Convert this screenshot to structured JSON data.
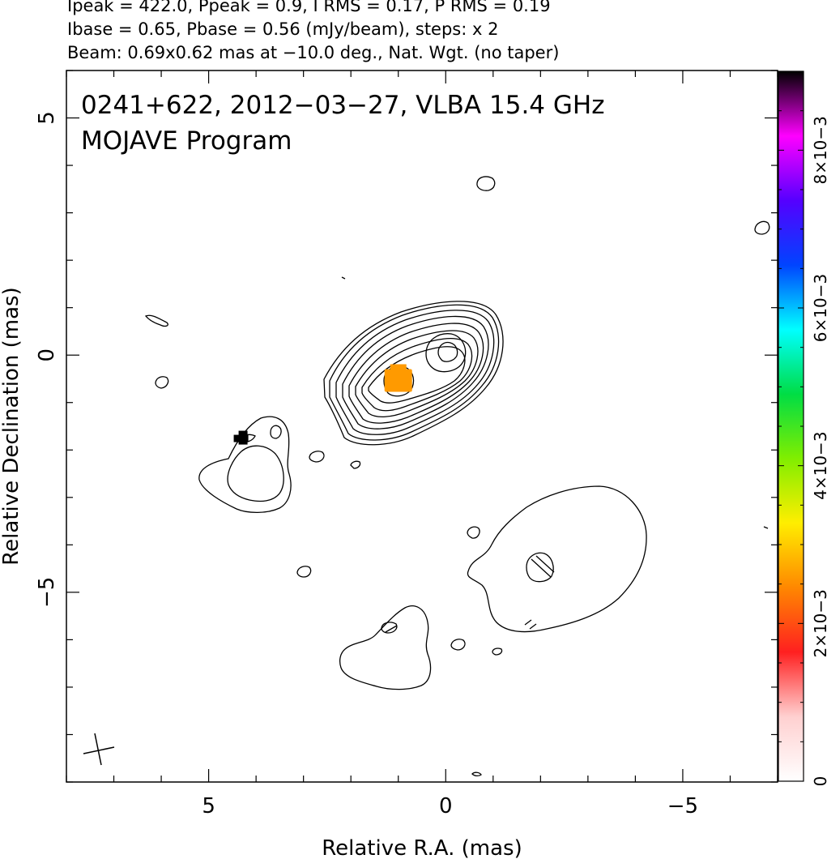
{
  "header": {
    "line1": "Ipeak = 422.0, Ppeak = 0.9, I RMS = 0.17, P RMS = 0.19",
    "line2": "Ibase = 0.65, Pbase = 0.56 (mJy/beam), steps: x 2",
    "line3": "Beam: 0.69x0.62 mas at −10.0 deg., Nat. Wgt. (no taper)"
  },
  "chart_data": {
    "type": "heatmap",
    "title": "0241+622, 2012−03−27, VLBA 15.4 GHz",
    "subtitle": "MOJAVE Program",
    "xlabel": "Relative R.A. (mas)",
    "ylabel": "Relative Declination (mas)",
    "xlim": [
      8.0,
      -7.0
    ],
    "ylim": [
      -9.0,
      6.0
    ],
    "x_ticks": [
      5,
      0,
      -5
    ],
    "x_tick_labels": [
      "5",
      "0",
      "−5"
    ],
    "y_ticks": [
      5,
      0,
      -5
    ],
    "y_tick_labels": [
      "5",
      "0",
      "−5"
    ],
    "colorbar": {
      "range": [
        0,
        0.009
      ],
      "ticks": [
        0,
        0.002,
        0.004,
        0.006,
        0.008
      ],
      "tick_labels": [
        "0",
        "2×10−3",
        "4×10−3",
        "6×10−3",
        "8×10−3"
      ],
      "colors": [
        "#ffffff",
        "#ffd0d0",
        "#ff2020",
        "#ff8800",
        "#ffee00",
        "#80ee00",
        "#00dd44",
        "#00ffff",
        "#0044ff",
        "#5500ff",
        "#ff00ff",
        "#000000"
      ]
    },
    "contour_levels_mjy_per_beam": [
      0.65,
      1.3,
      2.6,
      5.2,
      10.4,
      20.8,
      41.6,
      83.2,
      166.4,
      332.8
    ],
    "core": {
      "ra": 0.0,
      "dec": 0.0
    },
    "polarized_spots": [
      {
        "ra": 1.0,
        "dec": -0.5,
        "value": 0.0026
      },
      {
        "ra": 4.3,
        "dec": -1.8,
        "value": 0.009
      }
    ],
    "beam": {
      "major_mas": 0.69,
      "minor_mas": 0.62,
      "pa_deg": -10.0
    }
  }
}
